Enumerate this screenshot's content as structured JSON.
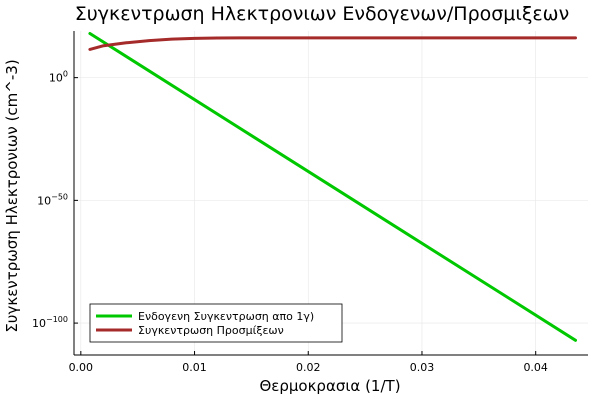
{
  "chart_data": {
    "type": "line",
    "title": "Συγκεντρωση Ηλεκτρονιων Ενδογενων/Προσμιξεων",
    "xlabel": "Θερμοκρασια (1/T)",
    "ylabel": "Συγκεντρωση Ηλεκτρονιων (cm^-3)",
    "xlim": [
      -0.0006,
      0.0446
    ],
    "ylim_log10": [
      -113,
      19
    ],
    "y_scale": "log10",
    "grid": true,
    "legend_position": "bottom-left",
    "x_ticks": [
      {
        "value": 0.0,
        "label": "0.00"
      },
      {
        "value": 0.01,
        "label": "0.01"
      },
      {
        "value": 0.02,
        "label": "0.02"
      },
      {
        "value": 0.03,
        "label": "0.03"
      },
      {
        "value": 0.04,
        "label": "0.04"
      }
    ],
    "y_ticks": [
      {
        "exp": 0,
        "base": "10",
        "sup": "0"
      },
      {
        "exp": -50,
        "base": "10",
        "sup": "−50"
      },
      {
        "exp": -100,
        "base": "10",
        "sup": "−100"
      }
    ],
    "series": [
      {
        "name": "Ενδογενη Συγκεντρωση απο 1γ)",
        "color": "#00c800",
        "x": [
          0.0008,
          0.0435
        ],
        "log10_y": [
          18,
          -107
        ]
      },
      {
        "name": "Συγκεντρωση Προσμίξεων",
        "color": "#a52a2a",
        "x": [
          0.0008,
          0.002,
          0.004,
          0.006,
          0.008,
          0.01,
          0.012,
          0.014,
          0.02,
          0.03,
          0.0435
        ],
        "log10_y": [
          11.5,
          13.0,
          14.2,
          15.1,
          15.7,
          16.0,
          16.15,
          16.2,
          16.2,
          16.2,
          16.2
        ]
      }
    ]
  }
}
